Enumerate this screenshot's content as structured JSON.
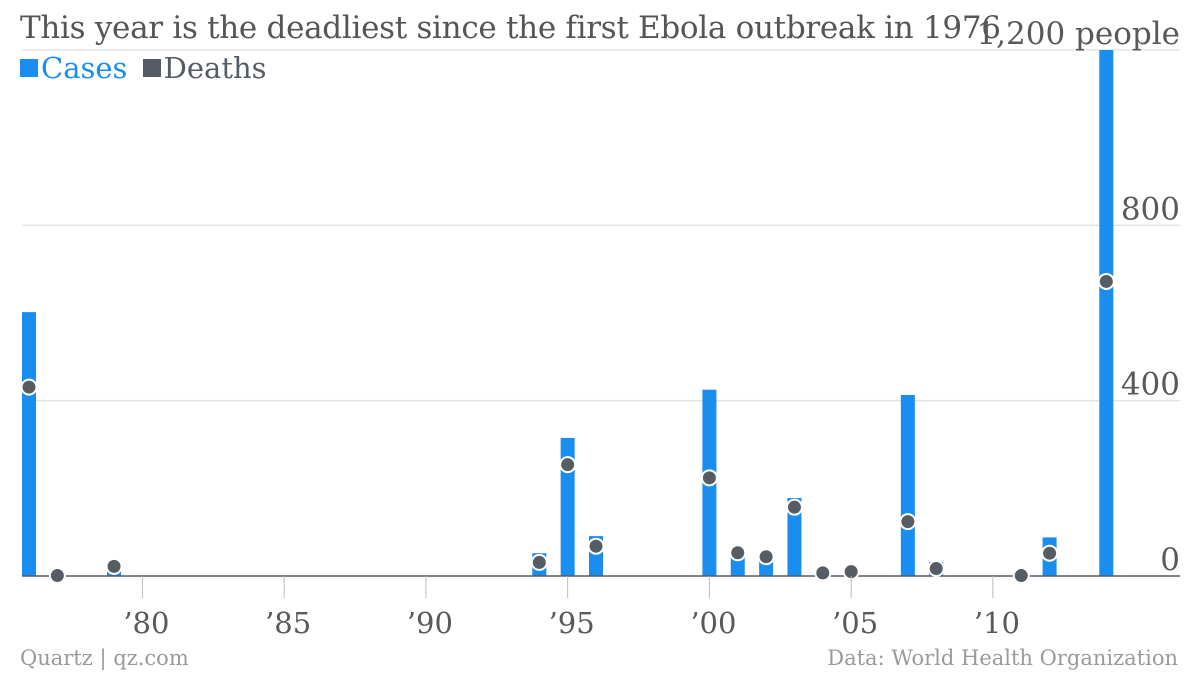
{
  "chart_data": {
    "type": "bar",
    "title": "This year is the deadliest since the first Ebola outbreak in 1976",
    "ylabel_unit": "people",
    "ylim": [
      0,
      1200
    ],
    "yticks": [
      {
        "value": 0,
        "label": "0"
      },
      {
        "value": 400,
        "label": "400"
      },
      {
        "value": 800,
        "label": "800"
      },
      {
        "value": 1200,
        "label": "1,200 people"
      }
    ],
    "xlim": [
      1976,
      2015
    ],
    "xticks": [
      {
        "value": 1980,
        "label": "’80"
      },
      {
        "value": 1985,
        "label": "’85"
      },
      {
        "value": 1990,
        "label": "’90"
      },
      {
        "value": 1995,
        "label": "’95"
      },
      {
        "value": 2000,
        "label": "’00"
      },
      {
        "value": 2005,
        "label": "’05"
      },
      {
        "value": 2010,
        "label": "’10"
      }
    ],
    "legend_position": "top-left",
    "grid": true,
    "series": [
      {
        "name": "Cases",
        "mark": "bar",
        "color": "#1a8ef0",
        "x": [
          1976,
          1977,
          1979,
          1994,
          1995,
          1996,
          2000,
          2001,
          2002,
          2003,
          2004,
          2005,
          2007,
          2008,
          2011,
          2012,
          2014
        ],
        "values": [
          602,
          1,
          34,
          52,
          315,
          91,
          425,
          57,
          35,
          178,
          17,
          12,
          413,
          32,
          1,
          88,
          1200
        ]
      },
      {
        "name": "Deaths",
        "mark": "dot",
        "color": "#555c63",
        "x": [
          1976,
          1977,
          1979,
          1994,
          1995,
          1996,
          2000,
          2001,
          2002,
          2003,
          2004,
          2005,
          2007,
          2008,
          2011,
          2012,
          2014
        ],
        "values": [
          431,
          1,
          22,
          31,
          254,
          68,
          224,
          53,
          44,
          157,
          7,
          10,
          124,
          17,
          1,
          52,
          672
        ]
      }
    ]
  },
  "legend": {
    "cases_label": "Cases",
    "deaths_label": "Deaths"
  },
  "footer": {
    "source_left": "Quartz | qz.com",
    "source_right": "Data: World Health Organization"
  }
}
